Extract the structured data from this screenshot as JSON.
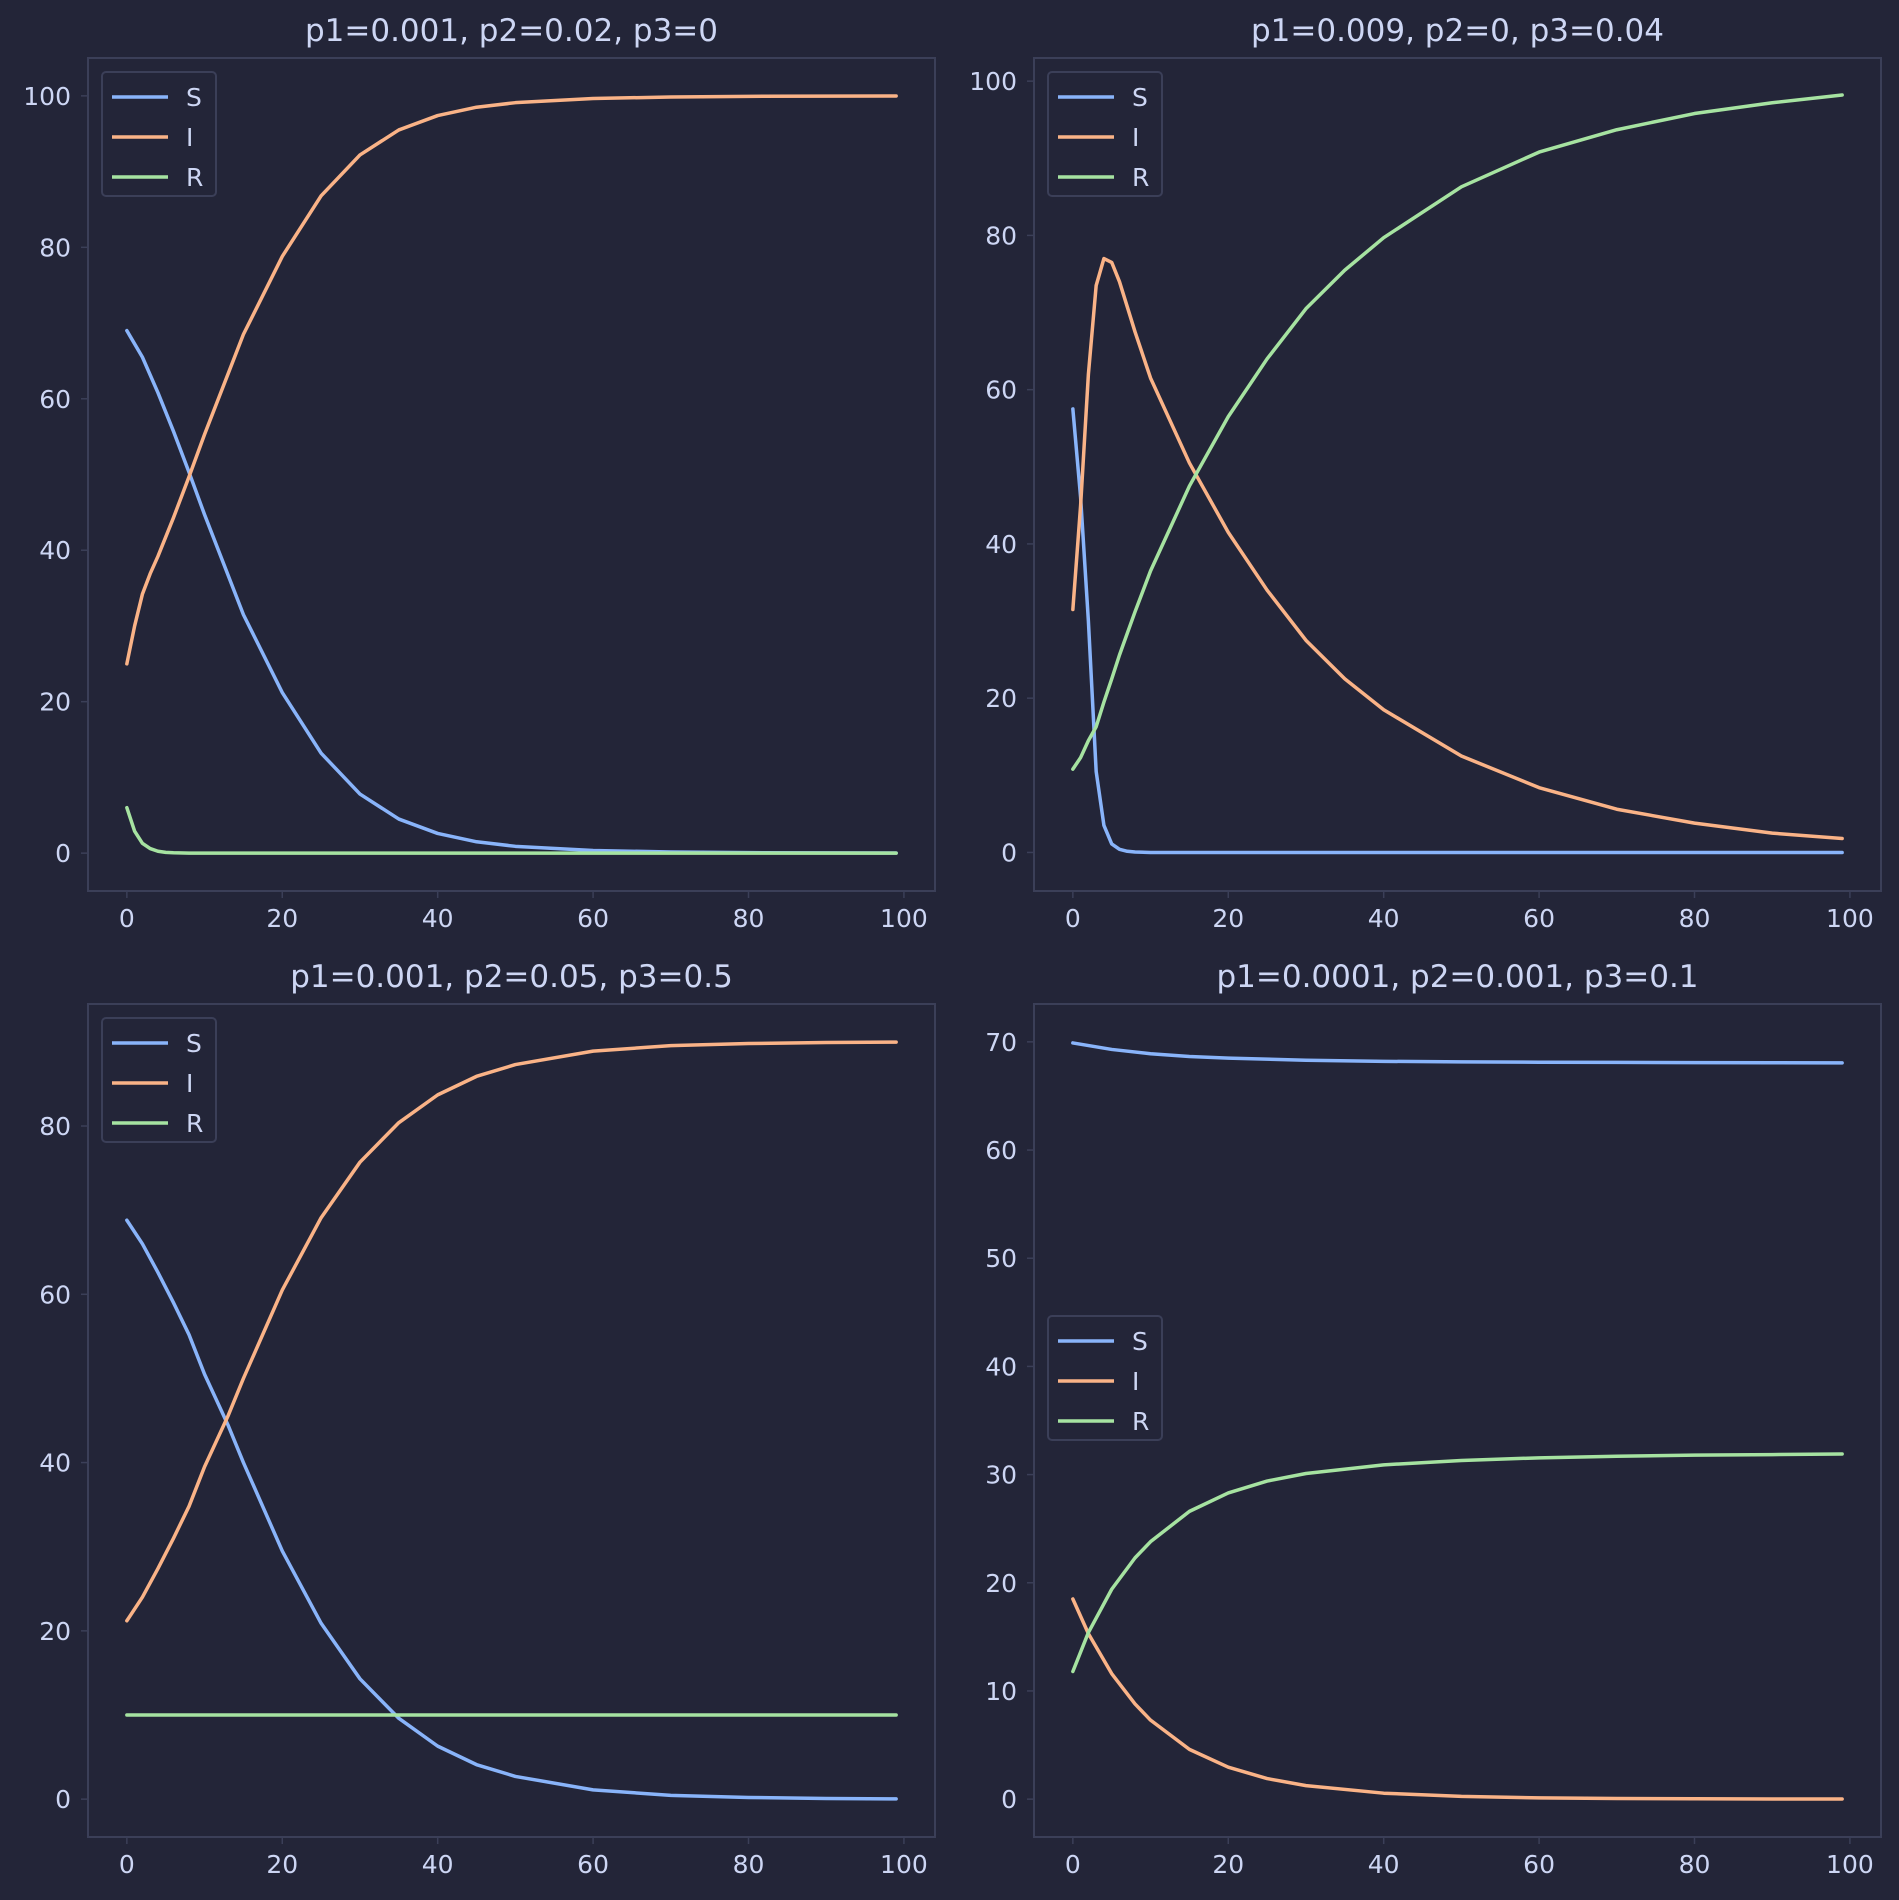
{
  "colors": {
    "background": "#232538",
    "axes_face": "#232538",
    "spine": "#3b3f58",
    "text": "#cdd6f4",
    "legend_bg": "#232538",
    "legend_border": "#3b3f58"
  },
  "chart_data": [
    {
      "type": "line",
      "title": "p1=0.001, p2=0.02, p3=0",
      "xlim": [
        -5,
        104
      ],
      "ylim": [
        -5,
        105
      ],
      "xticks": [
        0,
        20,
        40,
        60,
        80,
        100
      ],
      "yticks": [
        0,
        20,
        40,
        60,
        80,
        100
      ],
      "legend_position": "upper left",
      "series": [
        {
          "name": "S",
          "color": "#89b4fa",
          "x": [
            0,
            2,
            4,
            6,
            8,
            10,
            15,
            20,
            25,
            30,
            35,
            40,
            45,
            50,
            60,
            70,
            80,
            90,
            99
          ],
          "y": [
            69,
            65.5,
            60.8,
            55.7,
            50.3,
            44.7,
            31.5,
            21.2,
            13.2,
            7.8,
            4.5,
            2.6,
            1.5,
            0.9,
            0.35,
            0.15,
            0.06,
            0.03,
            0.01
          ]
        },
        {
          "name": "I",
          "color": "#fab387",
          "x": [
            0,
            1,
            2,
            3,
            4,
            6,
            8,
            10,
            15,
            20,
            25,
            30,
            35,
            40,
            45,
            50,
            60,
            70,
            80,
            90,
            99
          ],
          "y": [
            25,
            30,
            34.2,
            36.9,
            39.2,
            44.3,
            49.7,
            55.3,
            68.5,
            78.8,
            86.8,
            92.2,
            95.5,
            97.4,
            98.5,
            99.1,
            99.65,
            99.85,
            99.94,
            99.97,
            99.99
          ]
        },
        {
          "name": "R",
          "color": "#a6e3a1",
          "x": [
            0,
            1,
            2,
            3,
            4,
            5,
            6,
            8,
            10,
            20,
            40,
            60,
            80,
            99
          ],
          "y": [
            6,
            2.9,
            1.3,
            0.6,
            0.25,
            0.1,
            0.05,
            0,
            0,
            0,
            0,
            0,
            0,
            0
          ]
        }
      ]
    },
    {
      "type": "line",
      "title": "p1=0.009, p2=0, p3=0.04",
      "xlim": [
        -5,
        104
      ],
      "ylim": [
        -5,
        103
      ],
      "xticks": [
        0,
        20,
        40,
        60,
        80,
        100
      ],
      "yticks": [
        0,
        20,
        40,
        60,
        80,
        100
      ],
      "legend_position": "upper left",
      "series": [
        {
          "name": "S",
          "color": "#89b4fa",
          "x": [
            0,
            1,
            2,
            3,
            4,
            5,
            6,
            7,
            8,
            10,
            20,
            40,
            60,
            80,
            99
          ],
          "y": [
            57.5,
            46,
            30,
            10.5,
            3.5,
            1.1,
            0.4,
            0.15,
            0.05,
            0,
            0,
            0,
            0,
            0,
            0
          ]
        },
        {
          "name": "I",
          "color": "#fab387",
          "x": [
            0,
            1,
            2,
            3,
            4,
            5,
            6,
            8,
            10,
            15,
            20,
            25,
            30,
            35,
            40,
            50,
            60,
            70,
            80,
            90,
            99
          ],
          "y": [
            31.5,
            45,
            62,
            73.5,
            77,
            76.5,
            74,
            67.5,
            61.5,
            50.5,
            41.5,
            34,
            27.5,
            22.5,
            18.5,
            12.5,
            8.4,
            5.6,
            3.8,
            2.5,
            1.8
          ]
        },
        {
          "name": "R",
          "color": "#a6e3a1",
          "x": [
            0,
            1,
            2,
            3,
            4,
            5,
            6,
            8,
            10,
            15,
            20,
            25,
            30,
            35,
            40,
            50,
            60,
            70,
            80,
            90,
            99
          ],
          "y": [
            10.8,
            12.3,
            14.5,
            16.3,
            19.5,
            22.5,
            25.6,
            31.2,
            36.5,
            47.5,
            56.5,
            64,
            70.5,
            75.5,
            79.7,
            86.3,
            90.8,
            93.7,
            95.8,
            97.2,
            98.2
          ]
        }
      ]
    },
    {
      "type": "line",
      "title": "p1=0.001, p2=0.05, p3=0.5",
      "xlim": [
        -5,
        104
      ],
      "ylim": [
        -4.5,
        94.5
      ],
      "xticks": [
        0,
        20,
        40,
        60,
        80,
        100
      ],
      "yticks": [
        0,
        20,
        40,
        60,
        80
      ],
      "legend_position": "upper left",
      "series": [
        {
          "name": "S",
          "color": "#89b4fa",
          "x": [
            0,
            2,
            4,
            6,
            8,
            10,
            13,
            15,
            20,
            25,
            30,
            35,
            40,
            45,
            50,
            60,
            70,
            80,
            90,
            99
          ],
          "y": [
            68.8,
            66,
            62.6,
            59,
            55.2,
            50.5,
            44.5,
            40,
            29.5,
            20.9,
            14.3,
            9.6,
            6.3,
            4.1,
            2.7,
            1.1,
            0.45,
            0.2,
            0.08,
            0.03
          ]
        },
        {
          "name": "I",
          "color": "#fab387",
          "x": [
            0,
            2,
            4,
            6,
            8,
            10,
            13,
            15,
            20,
            25,
            30,
            35,
            40,
            45,
            50,
            60,
            70,
            80,
            90,
            99
          ],
          "y": [
            21.2,
            24,
            27.4,
            31,
            34.8,
            39.5,
            45.5,
            50,
            60.5,
            69.1,
            75.7,
            80.4,
            83.7,
            85.9,
            87.3,
            88.9,
            89.55,
            89.8,
            89.92,
            89.97
          ]
        },
        {
          "name": "R",
          "color": "#a6e3a1",
          "x": [
            0,
            20,
            40,
            60,
            80,
            99
          ],
          "y": [
            10,
            10,
            10,
            10,
            10,
            10
          ]
        }
      ]
    },
    {
      "type": "line",
      "title": "p1=0.0001, p2=0.001, p3=0.1",
      "xlim": [
        -5,
        104
      ],
      "ylim": [
        -3.5,
        73.5
      ],
      "xticks": [
        0,
        20,
        40,
        60,
        80,
        100
      ],
      "yticks": [
        0,
        10,
        20,
        30,
        40,
        50,
        60,
        70
      ],
      "legend_position": "center left",
      "series": [
        {
          "name": "S",
          "color": "#89b4fa",
          "x": [
            0,
            5,
            10,
            15,
            20,
            30,
            40,
            50,
            60,
            70,
            80,
            90,
            99
          ],
          "y": [
            69.9,
            69.3,
            68.9,
            68.65,
            68.5,
            68.3,
            68.2,
            68.15,
            68.12,
            68.1,
            68.08,
            68.07,
            68.06
          ]
        },
        {
          "name": "I",
          "color": "#fab387",
          "x": [
            0,
            2,
            5,
            8,
            10,
            15,
            20,
            25,
            30,
            40,
            50,
            60,
            70,
            80,
            90,
            99
          ],
          "y": [
            18.5,
            15.3,
            11.6,
            8.8,
            7.3,
            4.6,
            2.95,
            1.9,
            1.25,
            0.55,
            0.25,
            0.12,
            0.06,
            0.03,
            0.015,
            0.01
          ]
        },
        {
          "name": "R",
          "color": "#a6e3a1",
          "x": [
            0,
            2,
            5,
            8,
            10,
            15,
            20,
            25,
            30,
            40,
            50,
            60,
            70,
            80,
            90,
            99
          ],
          "y": [
            11.8,
            15.4,
            19.4,
            22.3,
            23.8,
            26.6,
            28.3,
            29.4,
            30.1,
            30.9,
            31.3,
            31.55,
            31.7,
            31.8,
            31.85,
            31.9
          ]
        }
      ]
    }
  ]
}
